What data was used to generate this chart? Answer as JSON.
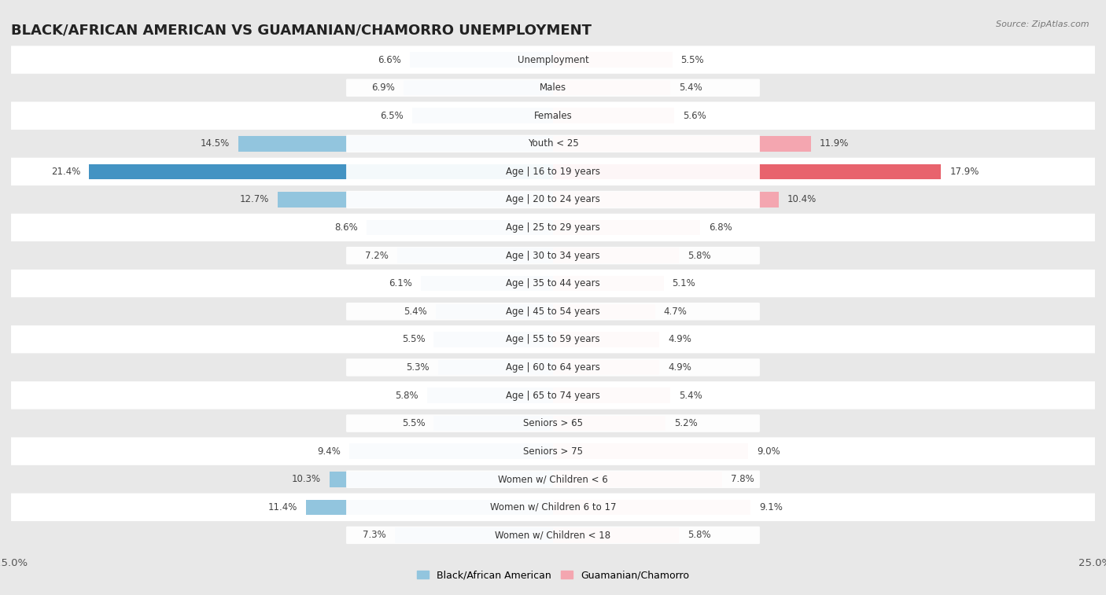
{
  "title": "BLACK/AFRICAN AMERICAN VS GUAMANIAN/CHAMORRO UNEMPLOYMENT",
  "source": "Source: ZipAtlas.com",
  "categories": [
    "Unemployment",
    "Males",
    "Females",
    "Youth < 25",
    "Age | 16 to 19 years",
    "Age | 20 to 24 years",
    "Age | 25 to 29 years",
    "Age | 30 to 34 years",
    "Age | 35 to 44 years",
    "Age | 45 to 54 years",
    "Age | 55 to 59 years",
    "Age | 60 to 64 years",
    "Age | 65 to 74 years",
    "Seniors > 65",
    "Seniors > 75",
    "Women w/ Children < 6",
    "Women w/ Children 6 to 17",
    "Women w/ Children < 18"
  ],
  "left_values": [
    6.6,
    6.9,
    6.5,
    14.5,
    21.4,
    12.7,
    8.6,
    7.2,
    6.1,
    5.4,
    5.5,
    5.3,
    5.8,
    5.5,
    9.4,
    10.3,
    11.4,
    7.3
  ],
  "right_values": [
    5.5,
    5.4,
    5.6,
    11.9,
    17.9,
    10.4,
    6.8,
    5.8,
    5.1,
    4.7,
    4.9,
    4.9,
    5.4,
    5.2,
    9.0,
    7.8,
    9.1,
    5.8
  ],
  "left_color": "#92c5de",
  "right_color": "#f4a6b0",
  "highlight_left_color": "#4393c3",
  "highlight_right_color": "#e8636d",
  "highlight_row": 4,
  "xlim": 25.0,
  "background_color": "#e8e8e8",
  "row_white": "#ffffff",
  "row_gray": "#e8e8e8",
  "bar_height": 0.55,
  "title_fontsize": 13,
  "label_fontsize": 8.5,
  "value_fontsize": 8.5,
  "legend_label_left": "Black/African American",
  "legend_label_right": "Guamanian/Chamorro"
}
